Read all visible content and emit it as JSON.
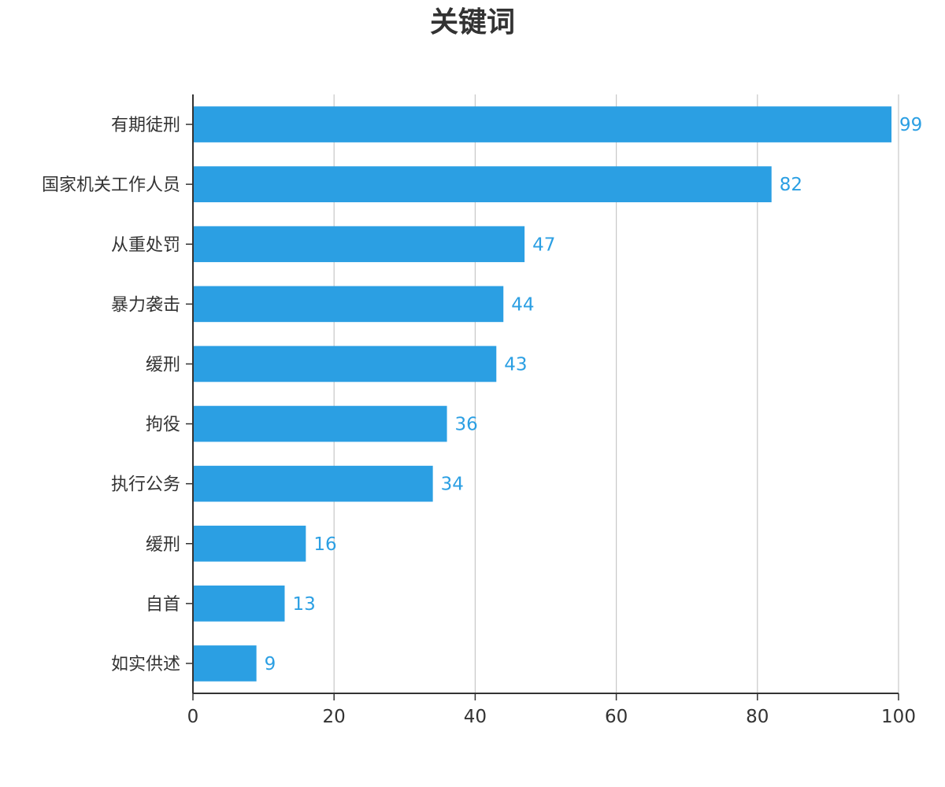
{
  "chart_data": {
    "type": "bar",
    "orientation": "horizontal",
    "title": "关键词",
    "xlabel": "",
    "ylabel": "",
    "categories": [
      "有期徒刑",
      "国家机关工作人员",
      "从重处罚",
      "暴力袭击",
      "缓刑",
      "拘役",
      "执行公务",
      "缓刑",
      "自首",
      "如实供述"
    ],
    "values": [
      99,
      82,
      47,
      44,
      43,
      36,
      34,
      16,
      13,
      9
    ],
    "xlim": [
      0,
      100
    ],
    "xticks": [
      0,
      20,
      40,
      60,
      80,
      100
    ],
    "grid": "vertical",
    "show_data_labels": true,
    "legend": "none"
  },
  "colors": {
    "bar": "#2b9fe3",
    "data_label": "#2b9fe3",
    "axis": "#333333",
    "grid": "#c8c8c8",
    "tick_text": "#333333"
  }
}
